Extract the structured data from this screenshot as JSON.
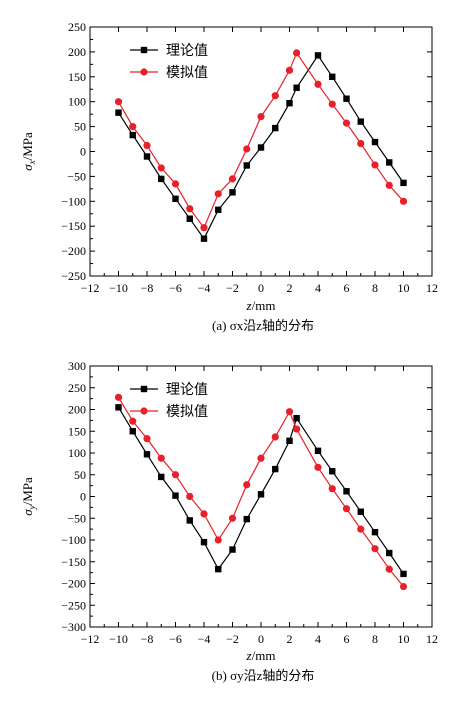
{
  "chart_data": [
    {
      "type": "line",
      "caption": "(a) σx沿z轴的分布",
      "xlabel": "z/mm",
      "ylabel": "σx/MPa",
      "xlim": [
        -12,
        12
      ],
      "ylim": [
        -250,
        250
      ],
      "xticks": [
        "−12",
        "−10",
        "−8",
        "−6",
        "−4",
        "−2",
        "0",
        "2",
        "4",
        "6",
        "8",
        "10",
        "12"
      ],
      "yticks": [
        "−250",
        "−200",
        "−150",
        "−100",
        "−50",
        "0",
        "50",
        "100",
        "150",
        "200",
        "250"
      ],
      "legend_position": "top-left",
      "series": [
        {
          "name": "理论值",
          "marker": "square",
          "color": "#000000",
          "x": [
            -10,
            -9,
            -8,
            -7,
            -6,
            -5,
            -4,
            -3,
            -2,
            -1,
            0,
            1,
            2,
            2.5,
            4,
            5,
            6,
            7,
            8,
            9,
            10
          ],
          "y": [
            78,
            33,
            -10,
            -55,
            -95,
            -135,
            -175,
            -117,
            -82,
            -28,
            8,
            47,
            97,
            128,
            193,
            150,
            106,
            60,
            19,
            -22,
            -63
          ]
        },
        {
          "name": "模拟值",
          "marker": "circle",
          "color": "#e8202a",
          "x": [
            -10,
            -9,
            -8,
            -7,
            -6,
            -5,
            -4,
            -3,
            -2,
            -1,
            0,
            1,
            2,
            2.5,
            4,
            5,
            6,
            7,
            8,
            9,
            10
          ],
          "y": [
            100,
            50,
            12,
            -33,
            -65,
            -115,
            -153,
            -85,
            -55,
            5,
            70,
            112,
            163,
            198,
            135,
            95,
            57,
            16,
            -27,
            -68,
            -100
          ]
        }
      ]
    },
    {
      "type": "line",
      "caption": "(b) σy沿z轴的分布",
      "xlabel": "z/mm",
      "ylabel": "σy/MPa",
      "xlim": [
        -12,
        12
      ],
      "ylim": [
        -300,
        300
      ],
      "xticks": [
        "−12",
        "−10",
        "−8",
        "−6",
        "−4",
        "−2",
        "0",
        "2",
        "4",
        "6",
        "8",
        "10",
        "12"
      ],
      "yticks": [
        "−300",
        "−250",
        "−200",
        "−150",
        "−100",
        "−50",
        "0",
        "50",
        "100",
        "150",
        "200",
        "250",
        "300"
      ],
      "legend_position": "top-left",
      "series": [
        {
          "name": "理论值",
          "marker": "square",
          "color": "#000000",
          "x": [
            -10,
            -9,
            -8,
            -7,
            -6,
            -5,
            -4,
            -3,
            -2,
            -1,
            0,
            1,
            2,
            2.5,
            4,
            5,
            6,
            7,
            8,
            9,
            10
          ],
          "y": [
            205,
            150,
            97,
            45,
            2,
            -55,
            -105,
            -167,
            -122,
            -52,
            5,
            63,
            128,
            180,
            105,
            58,
            12,
            -35,
            -82,
            -130,
            -178
          ]
        },
        {
          "name": "模拟值",
          "marker": "circle",
          "color": "#e8202a",
          "x": [
            -10,
            -9,
            -8,
            -7,
            -6,
            -5,
            -4,
            -3,
            -2,
            -1,
            0,
            1,
            2,
            2.5,
            4,
            5,
            6,
            7,
            8,
            9,
            10
          ],
          "y": [
            228,
            173,
            133,
            88,
            50,
            0,
            -40,
            -100,
            -50,
            27,
            88,
            137,
            195,
            155,
            67,
            18,
            -28,
            -75,
            -120,
            -167,
            -207
          ]
        }
      ]
    }
  ]
}
